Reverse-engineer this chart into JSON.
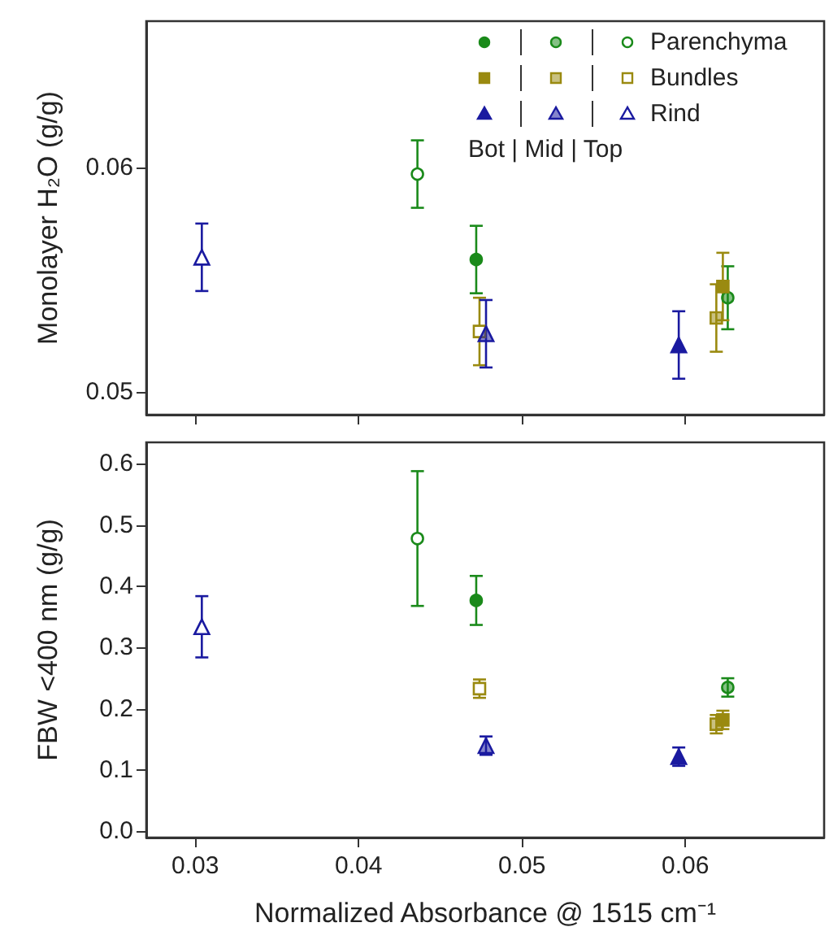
{
  "chart_data": [
    {
      "type": "scatter",
      "ylabel": "Monolayer H₂O (g/g)",
      "xlim": [
        0.027,
        0.0685
      ],
      "xticks": [
        0.03,
        0.04,
        0.05,
        0.06
      ],
      "ylim": [
        0.049,
        0.0665
      ],
      "yticks": [
        0.05,
        0.06
      ],
      "tick_labels": "y",
      "legend": "top right",
      "annotations": [
        "Bot | Mid | Top"
      ],
      "series": [
        {
          "color": "#1a8a1a",
          "marker": "circle",
          "x": [
            0.0472
          ],
          "values": [
            0.0559
          ],
          "errors": [
            0.0015
          ]
        },
        {
          "color": "#1a8a1a",
          "marker": "circle",
          "x": [
            0.0626
          ],
          "values": [
            0.0542
          ],
          "errors": [
            0.0014
          ]
        },
        {
          "name": "Parenchyma",
          "color": "#1a8a1a",
          "marker": "circle",
          "x": [
            0.0436
          ],
          "values": [
            0.0597
          ],
          "errors": [
            0.0015
          ]
        },
        {
          "color": "#9a8a10",
          "marker": "square",
          "x": [
            0.0623
          ],
          "values": [
            0.0547
          ],
          "errors": [
            0.0015
          ]
        },
        {
          "color": "#9a8a10",
          "marker": "square",
          "x": [
            0.0619
          ],
          "values": [
            0.0533
          ],
          "errors": [
            0.0015
          ]
        },
        {
          "name": "Bundles",
          "color": "#9a8a10",
          "marker": "square",
          "x": [
            0.0474
          ],
          "values": [
            0.0527
          ],
          "errors": [
            0.0015
          ]
        },
        {
          "color": "#1a1aa0",
          "marker": "triangle",
          "x": [
            0.0596
          ],
          "values": [
            0.0521
          ],
          "errors": [
            0.0015
          ]
        },
        {
          "color": "#1a1aa0",
          "marker": "triangle",
          "x": [
            0.0478
          ],
          "values": [
            0.0526
          ],
          "errors": [
            0.0015
          ]
        },
        {
          "name": "Rind",
          "color": "#1a1aa0",
          "marker": "triangle",
          "x": [
            0.0304
          ],
          "values": [
            0.056
          ],
          "errors": [
            0.0015
          ]
        }
      ]
    },
    {
      "type": "scatter",
      "xlabel": "Normalized Absorbance @ 1515 cm⁻¹",
      "ylabel": "FBW <400 nm (g/g)",
      "xlim": [
        0.027,
        0.0685
      ],
      "xticks": [
        0.03,
        0.04,
        0.05,
        0.06
      ],
      "ylim": [
        -0.01,
        0.635
      ],
      "yticks": [
        {
          "value": 0,
          "label": "0.0"
        },
        0.1,
        0.2,
        0.3,
        0.4,
        0.5,
        0.6
      ],
      "series": [
        {
          "color": "#1a8a1a",
          "marker": "circle",
          "x": [
            0.0472
          ],
          "values": [
            0.377
          ],
          "errors": [
            0.04
          ]
        },
        {
          "color": "#1a8a1a",
          "marker": "circle",
          "x": [
            0.0626
          ],
          "values": [
            0.235
          ],
          "errors": [
            0.015
          ]
        },
        {
          "color": "#1a8a1a",
          "marker": "circle",
          "x": [
            0.0436
          ],
          "values": [
            0.478
          ],
          "errors": [
            0.11
          ]
        },
        {
          "color": "#9a8a10",
          "marker": "square",
          "x": [
            0.0623
          ],
          "values": [
            0.182
          ],
          "errors": [
            0.015
          ]
        },
        {
          "color": "#9a8a10",
          "marker": "square",
          "x": [
            0.0619
          ],
          "values": [
            0.175
          ],
          "errors": [
            0.015
          ]
        },
        {
          "color": "#9a8a10",
          "marker": "square",
          "x": [
            0.0474
          ],
          "values": [
            0.233
          ],
          "errors": [
            0.015
          ]
        },
        {
          "color": "#1a1aa0",
          "marker": "triangle",
          "x": [
            0.0596
          ],
          "values": [
            0.122
          ],
          "errors": [
            0.015
          ]
        },
        {
          "color": "#1a1aa0",
          "marker": "triangle",
          "x": [
            0.0478
          ],
          "values": [
            0.14
          ],
          "errors": [
            0.015
          ]
        },
        {
          "color": "#1a1aa0",
          "marker": "triangle",
          "x": [
            0.0304
          ],
          "values": [
            0.334
          ],
          "errors": [
            0.05
          ]
        }
      ]
    }
  ]
}
